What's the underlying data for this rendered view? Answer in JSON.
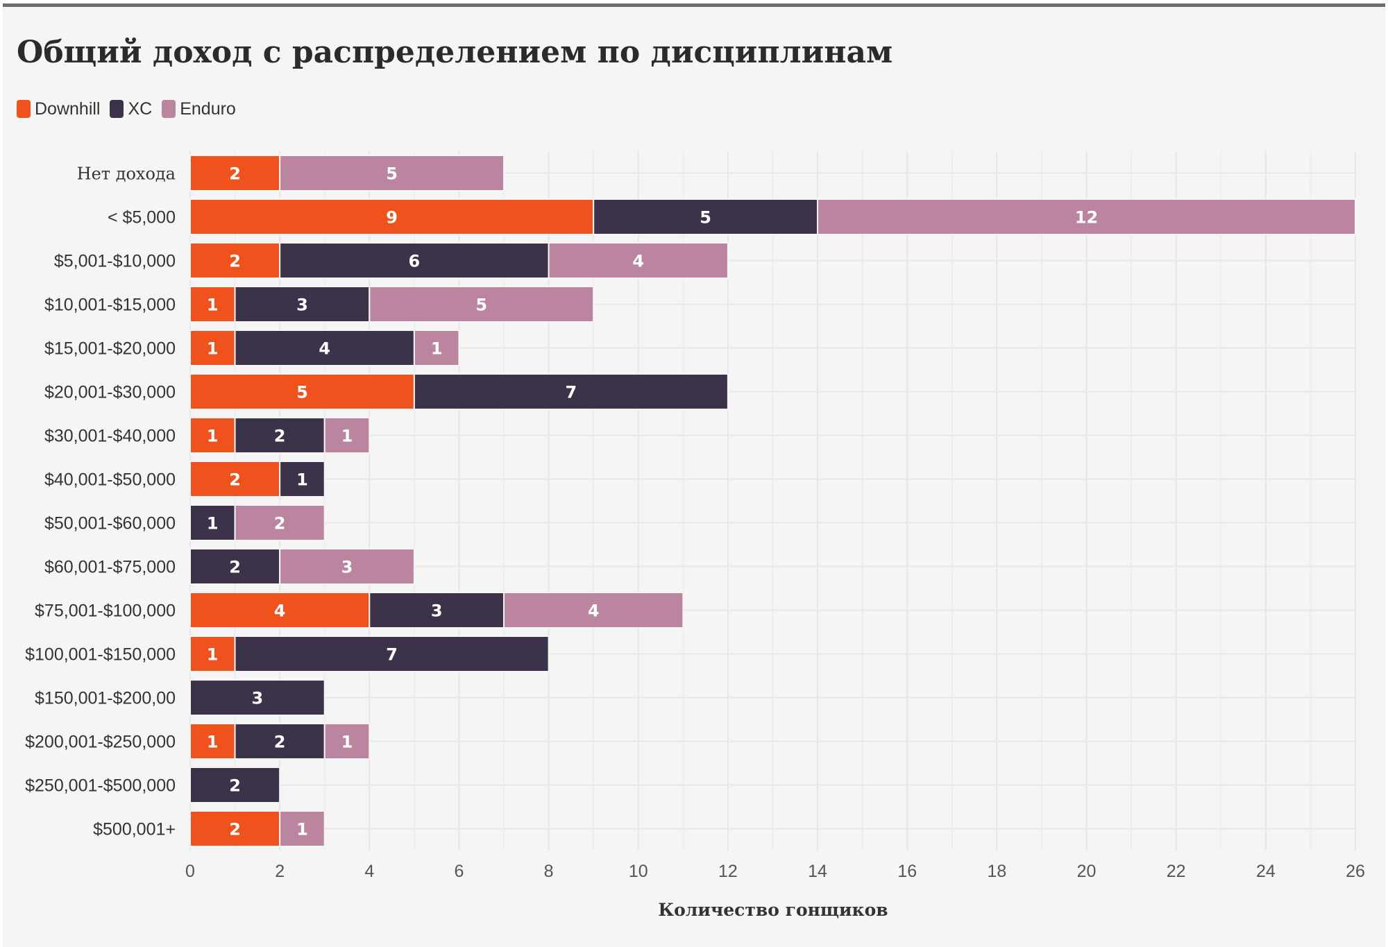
{
  "title": "Общий доход с распределением по дисциплинам",
  "legend": [
    {
      "label": "Downhill",
      "color": "#f0521e"
    },
    {
      "label": "XC",
      "color": "#3c334b"
    },
    {
      "label": "Enduro",
      "color": "#bb859f"
    }
  ],
  "chart_data": {
    "type": "bar",
    "orientation": "horizontal",
    "stacked": true,
    "title": "Общий доход с распределением по дисциплинам",
    "xlabel": "Количество гонщиков",
    "ylabel": "",
    "xlim": [
      0,
      26
    ],
    "xticks": [
      0,
      2,
      4,
      6,
      8,
      10,
      12,
      14,
      16,
      18,
      20,
      22,
      24,
      26
    ],
    "grid": true,
    "legend_position": "top-left",
    "categories": [
      "Нет дохода",
      "< $5,000",
      "$5,001-$10,000",
      "$10,001-$15,000",
      "$15,001-$20,000",
      "$20,001-$30,000",
      "$30,001-$40,000",
      "$40,001-$50,000",
      "$50,001-$60,000",
      "$60,001-$75,000",
      "$75,001-$100,000",
      "$100,001-$150,000",
      "$150,001-$200,00",
      "$200,001-$250,000",
      "$250,001-$500,000",
      "$500,001+"
    ],
    "series": [
      {
        "name": "Downhill",
        "color": "#f0521e",
        "values": [
          2,
          9,
          2,
          1,
          1,
          5,
          1,
          2,
          0,
          0,
          4,
          1,
          0,
          1,
          0,
          2
        ]
      },
      {
        "name": "XC",
        "color": "#3c334b",
        "values": [
          0,
          5,
          6,
          3,
          4,
          7,
          2,
          1,
          1,
          2,
          3,
          7,
          3,
          2,
          2,
          0
        ]
      },
      {
        "name": "Enduro",
        "color": "#bb859f",
        "values": [
          5,
          12,
          4,
          5,
          1,
          0,
          1,
          0,
          2,
          3,
          4,
          0,
          0,
          1,
          0,
          1
        ]
      }
    ]
  }
}
